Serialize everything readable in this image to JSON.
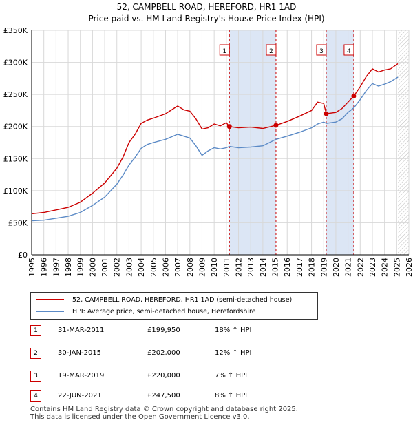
{
  "title_line1": "52, CAMPBELL ROAD, HEREFORD, HR1 1AD",
  "title_line2": "Price paid vs. HM Land Registry's House Price Index (HPI)",
  "legend": {
    "red_label": "52, CAMPBELL ROAD, HEREFORD, HR1 1AD (semi-detached house)",
    "blue_label": "HPI: Average price, semi-detached house, Herefordshire"
  },
  "colors": {
    "red": "#cc0000",
    "blue": "#5b8ac6",
    "shade": "#dce6f5",
    "grid": "#d8d8d8"
  },
  "chart_data": {
    "type": "line",
    "ylim": [
      0,
      350000
    ],
    "xlim": [
      1995,
      2026
    ],
    "y_ticks": [
      {
        "value": 0,
        "label": "£0"
      },
      {
        "value": 50000,
        "label": "£50K"
      },
      {
        "value": 100000,
        "label": "£100K"
      },
      {
        "value": 150000,
        "label": "£150K"
      },
      {
        "value": 200000,
        "label": "£200K"
      },
      {
        "value": 250000,
        "label": "£250K"
      },
      {
        "value": 300000,
        "label": "£300K"
      },
      {
        "value": 350000,
        "label": "£350K"
      }
    ],
    "x_ticks": [
      "1995",
      "1996",
      "1997",
      "1998",
      "1999",
      "2000",
      "2001",
      "2002",
      "2003",
      "2004",
      "2005",
      "2006",
      "2007",
      "2008",
      "2009",
      "2010",
      "2011",
      "2012",
      "2013",
      "2014",
      "2015",
      "2016",
      "2017",
      "2018",
      "2019",
      "2020",
      "2021",
      "2022",
      "2023",
      "2024",
      "2025",
      "2026"
    ],
    "shaded_ranges": [
      [
        2011.25,
        2015.08
      ],
      [
        2019.21,
        2021.47
      ]
    ],
    "forecast_from": 2025.1,
    "series": [
      {
        "name": "52, CAMPBELL ROAD, HEREFORD, HR1 1AD (semi-detached house)",
        "x": [
          1995,
          1996,
          1997,
          1998,
          1999,
          2000,
          2001,
          2002,
          2002.5,
          2003,
          2003.5,
          2004,
          2004.5,
          2005,
          2006,
          2007,
          2007.5,
          2008,
          2008.5,
          2009,
          2009.5,
          2010,
          2010.5,
          2011,
          2011.25,
          2012,
          2013,
          2014,
          2015.08,
          2016,
          2017,
          2018,
          2018.5,
          2019,
          2019.21,
          2020,
          2020.5,
          2021,
          2021.47,
          2022,
          2022.5,
          2023,
          2023.5,
          2024,
          2024.5,
          2025.1
        ],
        "values": [
          64000,
          66000,
          70000,
          74000,
          82000,
          96000,
          112000,
          135000,
          152000,
          175000,
          188000,
          205000,
          210000,
          213000,
          220000,
          232000,
          226000,
          224000,
          212000,
          196000,
          198000,
          204000,
          201000,
          206000,
          199950,
          198000,
          199000,
          197000,
          202000,
          208000,
          216000,
          225000,
          238000,
          236000,
          220000,
          222000,
          228000,
          238000,
          247500,
          262000,
          278000,
          290000,
          285000,
          288000,
          290000,
          298000
        ]
      },
      {
        "name": "HPI: Average price, semi-detached house, Herefordshire",
        "x": [
          1995,
          1996,
          1997,
          1998,
          1999,
          2000,
          2001,
          2002,
          2002.5,
          2003,
          2003.5,
          2004,
          2004.5,
          2005,
          2006,
          2007,
          2007.5,
          2008,
          2008.5,
          2009,
          2009.5,
          2010,
          2010.5,
          2011,
          2011.25,
          2012,
          2013,
          2014,
          2015.08,
          2016,
          2017,
          2018,
          2018.5,
          2019,
          2019.21,
          2020,
          2020.5,
          2021,
          2021.47,
          2022,
          2022.5,
          2023,
          2023.5,
          2024,
          2024.5,
          2025.1
        ],
        "values": [
          53000,
          54000,
          57000,
          60000,
          66000,
          77000,
          90000,
          110000,
          124000,
          140000,
          152000,
          166000,
          172000,
          175000,
          180000,
          188000,
          185000,
          182000,
          170000,
          155000,
          162000,
          167000,
          165000,
          167000,
          169000,
          167000,
          168000,
          170000,
          180000,
          185000,
          191000,
          198000,
          204000,
          207000,
          205000,
          207000,
          212000,
          222000,
          229000,
          242000,
          256000,
          267000,
          263000,
          266000,
          270000,
          277000
        ]
      }
    ],
    "sales": [
      {
        "label": "1",
        "x": 2011.25,
        "value": 199950
      },
      {
        "label": "2",
        "x": 2015.08,
        "value": 202000
      },
      {
        "label": "3",
        "x": 2019.21,
        "value": 220000
      },
      {
        "label": "4",
        "x": 2021.47,
        "value": 247500
      }
    ]
  },
  "sales_table": [
    {
      "num": "1",
      "date": "31-MAR-2011",
      "price": "£199,950",
      "hpi": "18% ↑ HPI"
    },
    {
      "num": "2",
      "date": "30-JAN-2015",
      "price": "£202,000",
      "hpi": "12% ↑ HPI"
    },
    {
      "num": "3",
      "date": "19-MAR-2019",
      "price": "£220,000",
      "hpi": "7% ↑ HPI"
    },
    {
      "num": "4",
      "date": "22-JUN-2021",
      "price": "£247,500",
      "hpi": "8% ↑ HPI"
    }
  ],
  "footer_line1": "Contains HM Land Registry data © Crown copyright and database right 2025.",
  "footer_line2": "This data is licensed under the Open Government Licence v3.0."
}
